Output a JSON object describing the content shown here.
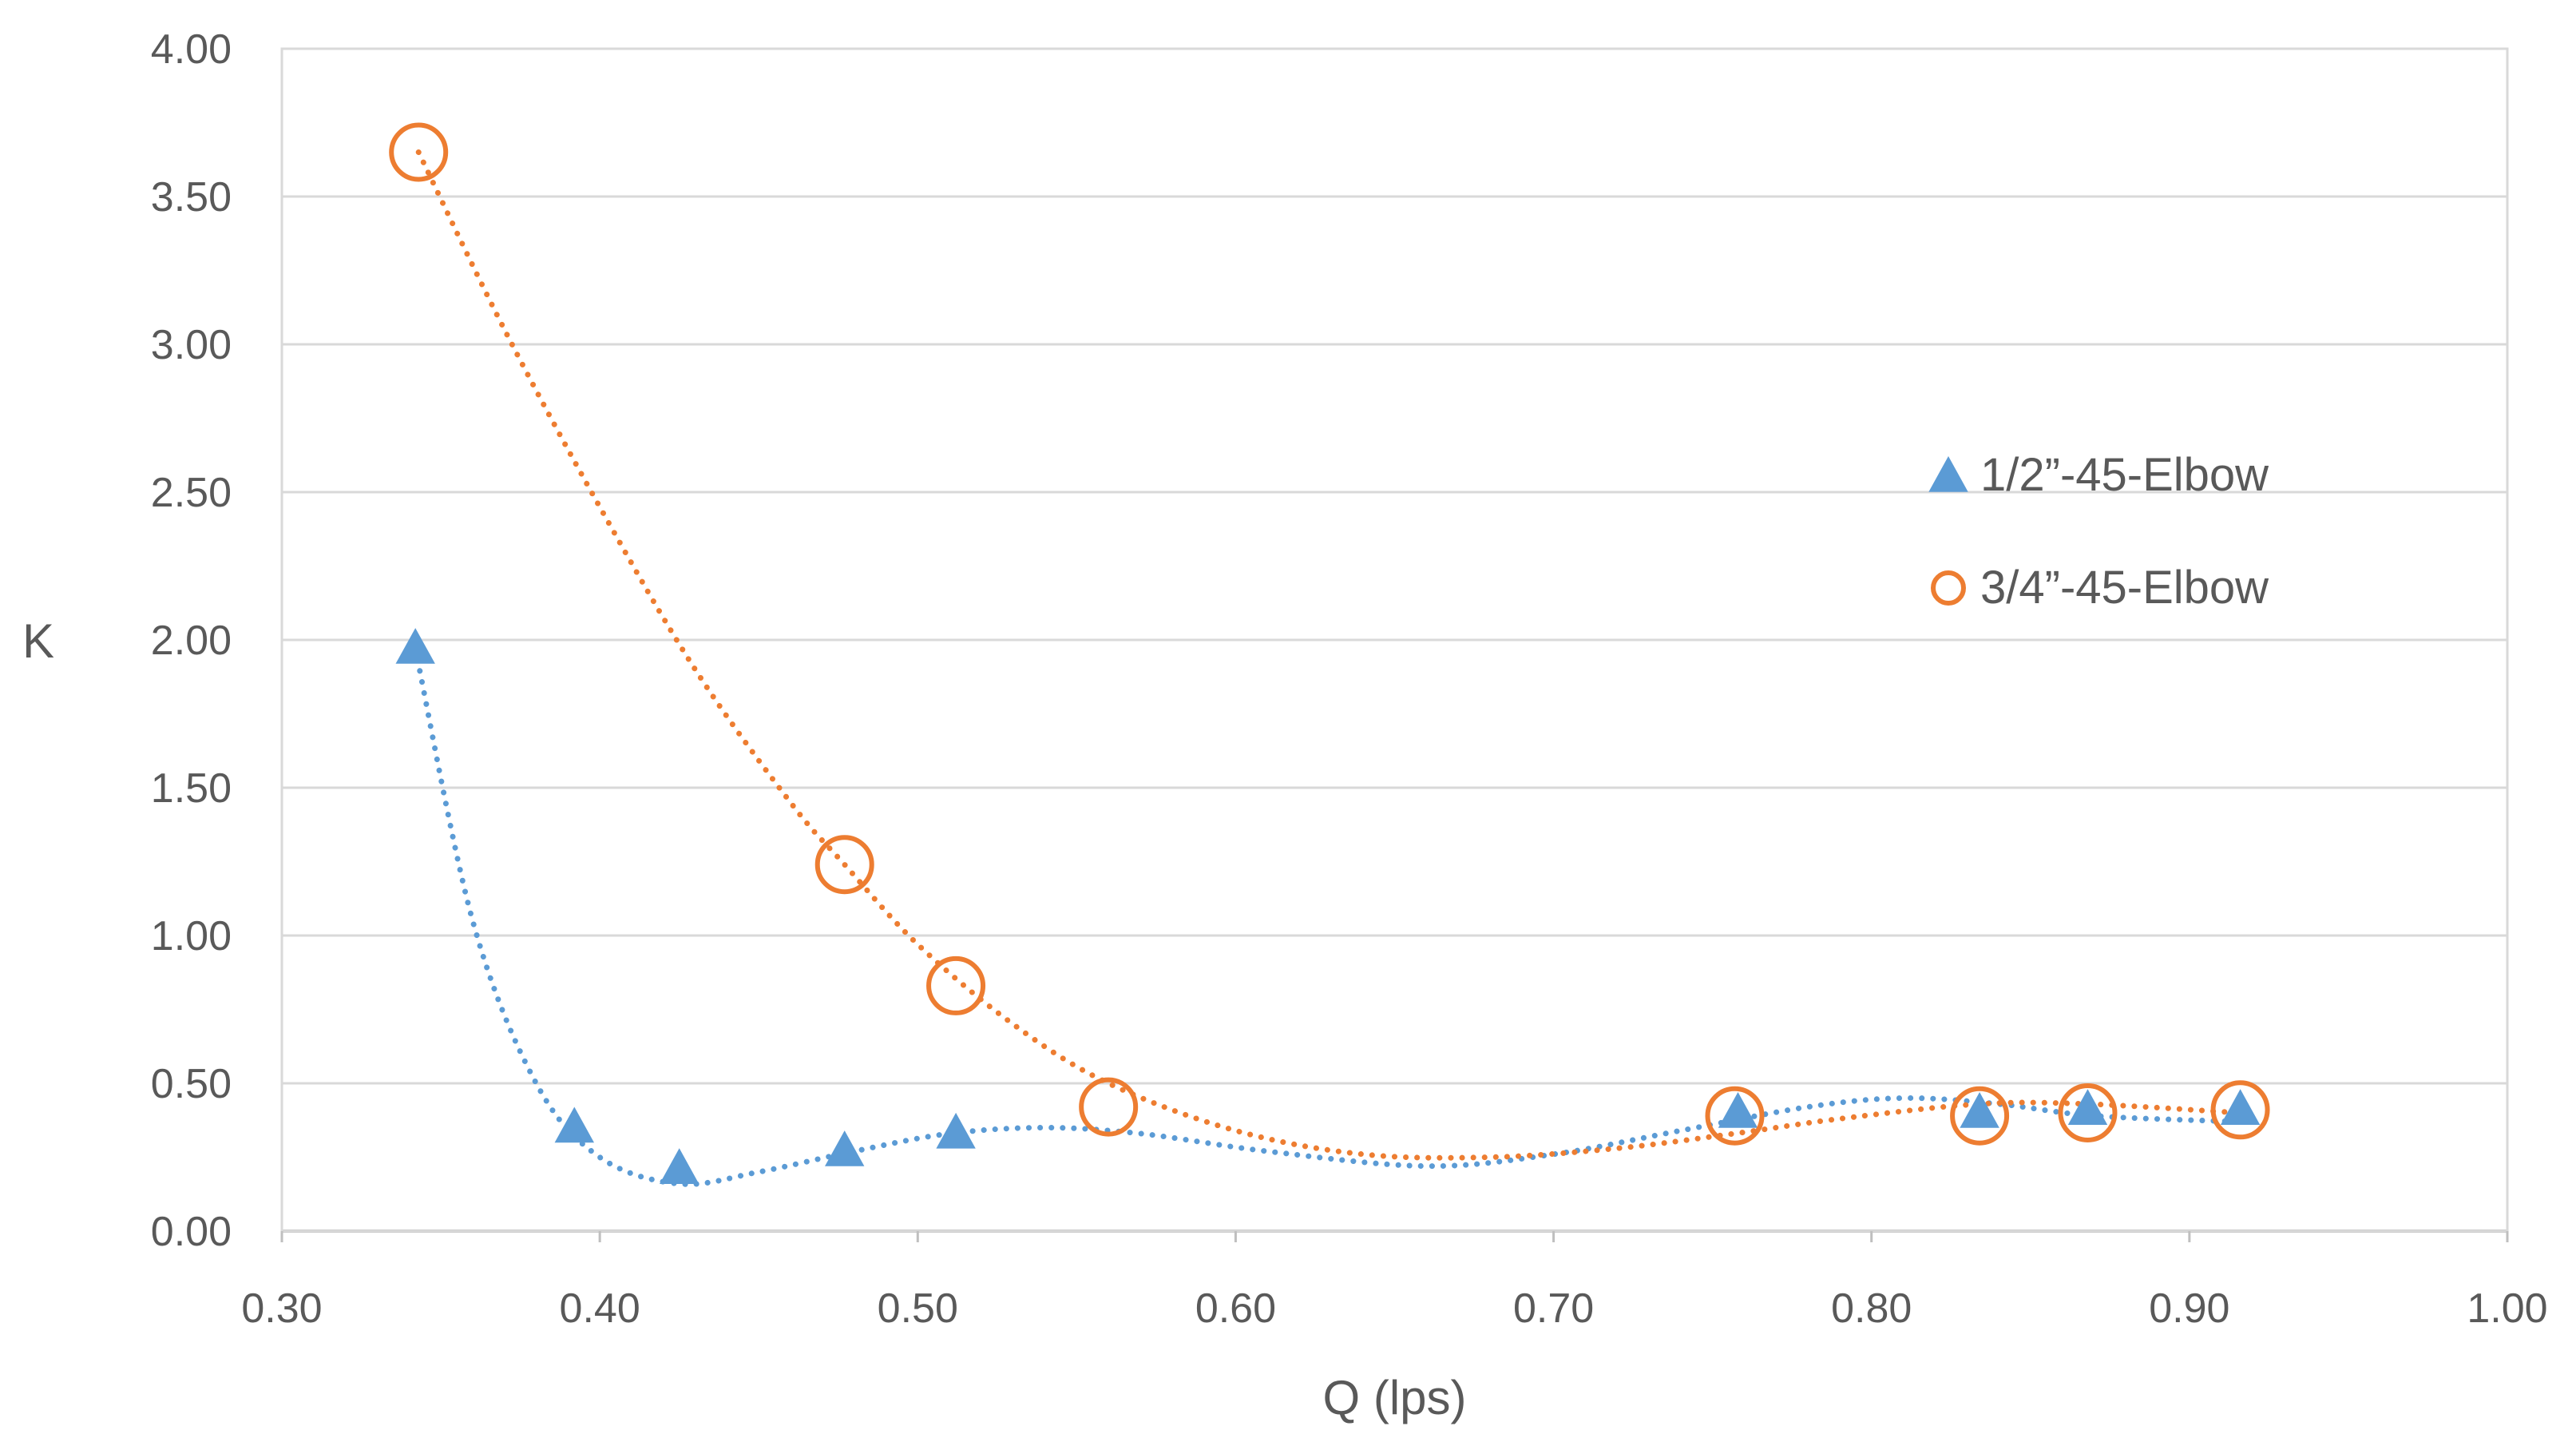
{
  "chart_data": {
    "type": "scatter",
    "title": "",
    "xlabel": "Q (lps)",
    "ylabel": "K",
    "xlim": [
      0.3,
      1.0
    ],
    "ylim": [
      0.0,
      4.0
    ],
    "x_ticks": [
      "0.30",
      "0.40",
      "0.50",
      "0.60",
      "0.70",
      "0.80",
      "0.90",
      "1.00"
    ],
    "y_ticks": [
      "0.00",
      "0.50",
      "1.00",
      "1.50",
      "2.00",
      "2.50",
      "3.00",
      "3.50",
      "4.00"
    ],
    "grid": "horizontal",
    "legend_position": "right",
    "trendlines": "dotted smooth curves through each series",
    "series": [
      {
        "name": "1/2”-45-Elbow",
        "marker": "triangle",
        "color": "#5B9BD5",
        "points": [
          {
            "x": 0.342,
            "y": 1.97
          },
          {
            "x": 0.392,
            "y": 0.35
          },
          {
            "x": 0.425,
            "y": 0.21
          },
          {
            "x": 0.477,
            "y": 0.27
          },
          {
            "x": 0.512,
            "y": 0.33
          },
          {
            "x": 0.758,
            "y": 0.4
          },
          {
            "x": 0.834,
            "y": 0.4
          },
          {
            "x": 0.868,
            "y": 0.41
          },
          {
            "x": 0.916,
            "y": 0.41
          }
        ],
        "trend": [
          {
            "x": 0.342,
            "y": 1.97
          },
          {
            "x": 0.36,
            "y": 1.05
          },
          {
            "x": 0.38,
            "y": 0.5
          },
          {
            "x": 0.4,
            "y": 0.25
          },
          {
            "x": 0.425,
            "y": 0.16
          },
          {
            "x": 0.45,
            "y": 0.2
          },
          {
            "x": 0.48,
            "y": 0.27
          },
          {
            "x": 0.51,
            "y": 0.33
          },
          {
            "x": 0.54,
            "y": 0.35
          },
          {
            "x": 0.57,
            "y": 0.33
          },
          {
            "x": 0.61,
            "y": 0.27
          },
          {
            "x": 0.66,
            "y": 0.22
          },
          {
            "x": 0.7,
            "y": 0.26
          },
          {
            "x": 0.74,
            "y": 0.34
          },
          {
            "x": 0.78,
            "y": 0.42
          },
          {
            "x": 0.81,
            "y": 0.45
          },
          {
            "x": 0.84,
            "y": 0.43
          },
          {
            "x": 0.87,
            "y": 0.39
          },
          {
            "x": 0.916,
            "y": 0.37
          }
        ]
      },
      {
        "name": "3/4”-45-Elbow",
        "marker": "circle-open",
        "color": "#ED7D31",
        "points": [
          {
            "x": 0.343,
            "y": 3.65
          },
          {
            "x": 0.477,
            "y": 1.24
          },
          {
            "x": 0.512,
            "y": 0.83
          },
          {
            "x": 0.56,
            "y": 0.42
          },
          {
            "x": 0.757,
            "y": 0.39
          },
          {
            "x": 0.834,
            "y": 0.39
          },
          {
            "x": 0.868,
            "y": 0.4
          },
          {
            "x": 0.916,
            "y": 0.41
          }
        ],
        "trend": [
          {
            "x": 0.343,
            "y": 3.65
          },
          {
            "x": 0.37,
            "y": 3.05
          },
          {
            "x": 0.4,
            "y": 2.45
          },
          {
            "x": 0.43,
            "y": 1.9
          },
          {
            "x": 0.46,
            "y": 1.45
          },
          {
            "x": 0.477,
            "y": 1.24
          },
          {
            "x": 0.5,
            "y": 0.97
          },
          {
            "x": 0.53,
            "y": 0.7
          },
          {
            "x": 0.56,
            "y": 0.5
          },
          {
            "x": 0.6,
            "y": 0.34
          },
          {
            "x": 0.64,
            "y": 0.26
          },
          {
            "x": 0.68,
            "y": 0.25
          },
          {
            "x": 0.72,
            "y": 0.28
          },
          {
            "x": 0.757,
            "y": 0.33
          },
          {
            "x": 0.79,
            "y": 0.38
          },
          {
            "x": 0.834,
            "y": 0.43
          },
          {
            "x": 0.868,
            "y": 0.43
          },
          {
            "x": 0.916,
            "y": 0.4
          }
        ]
      }
    ]
  }
}
